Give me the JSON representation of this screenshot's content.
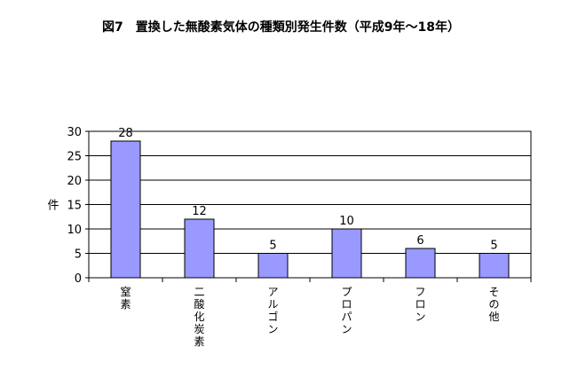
{
  "chart_data": {
    "type": "bar",
    "title": "図7　置換した無酸素気体の種類別発生件数（平成9年～18年）",
    "ylabel": "件",
    "xlabel": "",
    "categories": [
      "窒素",
      "二酸化炭素",
      "アルゴン",
      "プロパン",
      "フロン",
      "その他"
    ],
    "values": [
      28,
      12,
      5,
      10,
      6,
      5
    ],
    "ylim": [
      0,
      30
    ],
    "yticks": [
      0,
      5,
      10,
      15,
      20,
      25,
      30
    ],
    "grid": true,
    "bar_color": "#9999ff",
    "legend": "none"
  }
}
